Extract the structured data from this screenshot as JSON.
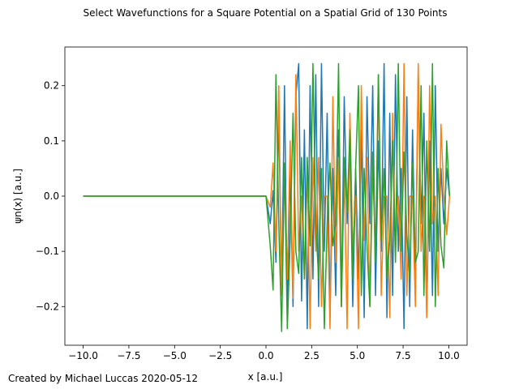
{
  "chart_data": {
    "type": "line",
    "title": "Select Wavefunctions for a Square Potential on a Spatial Grid of 130 Points",
    "xlabel": "x [a.u.]",
    "ylabel": "ψn(x)  [a.u.]",
    "footer": "Created by Michael Luccas 2020-05-12",
    "xlim": [
      -11.0,
      11.0
    ],
    "ylim": [
      -0.27,
      0.27
    ],
    "xticks": [
      -10.0,
      -7.5,
      -5.0,
      -2.5,
      0.0,
      2.5,
      5.0,
      7.5,
      10.0
    ],
    "xtick_labels": [
      "−10.0",
      "−7.5",
      "−5.0",
      "−2.5",
      "0.0",
      "2.5",
      "5.0",
      "7.5",
      "10.0"
    ],
    "yticks": [
      -0.2,
      -0.1,
      0.0,
      0.1,
      0.2
    ],
    "ytick_labels": [
      "−0.2",
      "−0.1",
      "0.0",
      "0.1",
      "0.2"
    ],
    "grid": false,
    "legend": "none",
    "colors": [
      "#1f77b4",
      "#ff7f0e",
      "#2ca02c"
    ],
    "x": [
      -10.0,
      0.0,
      0.233,
      0.389,
      0.545,
      0.7,
      0.856,
      1.012,
      1.167,
      1.323,
      1.479,
      1.634,
      1.79,
      1.946,
      2.101,
      2.257,
      2.412,
      2.568,
      2.724,
      2.879,
      3.035,
      3.191,
      3.346,
      3.502,
      3.658,
      3.813,
      3.969,
      4.125,
      4.28,
      4.436,
      4.591,
      4.747,
      4.903,
      5.058,
      5.214,
      5.37,
      5.525,
      5.681,
      5.837,
      5.992,
      6.148,
      6.304,
      6.459,
      6.615,
      6.77,
      6.926,
      7.082,
      7.237,
      7.393,
      7.549,
      7.704,
      7.86,
      8.016,
      8.171,
      8.327,
      8.483,
      8.638,
      8.794,
      8.949,
      9.105,
      9.261,
      9.416,
      9.572,
      9.728,
      9.883,
      10.039
    ],
    "series": [
      {
        "values": [
          0,
          0,
          -0.05,
          0.01,
          -0.12,
          0.15,
          -0.18,
          0.2,
          -0.22,
          0.05,
          -0.2,
          0.18,
          0.24,
          -0.19,
          0.12,
          -0.24,
          0.2,
          -0.15,
          0.22,
          -0.2,
          0.24,
          -0.1,
          0.15,
          -0.22,
          0.05,
          -0.18,
          0.12,
          -0.2,
          0.18,
          -0.05,
          0.1,
          -0.2,
          0.05,
          -0.15,
          0.12,
          -0.22,
          0.18,
          -0.05,
          0.2,
          -0.18,
          0.1,
          -0.1,
          0.24,
          -0.22,
          0.15,
          -0.18,
          0.22,
          -0.1,
          0.05,
          -0.24,
          0.18,
          -0.2,
          0.12,
          -0.15,
          0.22,
          -0.05,
          0.15,
          -0.22,
          0.1,
          -0.18,
          0.2,
          -0.1,
          0.05,
          -0.05,
          0.05,
          0.0
        ]
      },
      {
        "values": [
          0,
          0,
          -0.02,
          0.06,
          -0.1,
          0.2,
          -0.18,
          0.05,
          -0.15,
          0.1,
          -0.185,
          0.22,
          -0.1,
          0.0,
          -0.15,
          0.05,
          -0.24,
          0.07,
          -0.1,
          0.07,
          -0.2,
          0.0,
          0.0,
          -0.24,
          0.18,
          -0.12,
          0.07,
          -0.2,
          0.05,
          -0.24,
          0.15,
          -0.1,
          0.0,
          -0.24,
          0.2,
          -0.08,
          0.07,
          -0.2,
          0.05,
          -0.1,
          0.22,
          -0.18,
          0.0,
          0.0,
          -0.22,
          0.15,
          -0.1,
          0.0,
          -0.15,
          0.24,
          -0.18,
          0.0,
          0.0,
          -0.2,
          0.24,
          -0.1,
          0.0,
          -0.22,
          0.2,
          -0.05,
          0.0,
          -0.18,
          0.13,
          0.0,
          -0.07,
          0.0
        ]
      },
      {
        "values": [
          0,
          0,
          -0.09,
          -0.17,
          0.22,
          -0.05,
          -0.245,
          0.06,
          -0.24,
          -0.08,
          0.15,
          -0.1,
          -0.14,
          0.07,
          -0.15,
          0.07,
          -0.09,
          0.24,
          -0.05,
          -0.15,
          0.05,
          -0.24,
          -0.05,
          0.06,
          -0.09,
          -0.05,
          0.24,
          -0.2,
          0.07,
          -0.03,
          0.12,
          -0.15,
          0.05,
          0.2,
          -0.18,
          0.05,
          -0.09,
          -0.2,
          0.08,
          -0.12,
          0.22,
          -0.08,
          0.05,
          -0.15,
          -0.08,
          0.1,
          -0.12,
          0.24,
          -0.1,
          0.08,
          -0.07,
          -0.15,
          0.06,
          -0.12,
          -0.1,
          0.2,
          -0.18,
          0.1,
          -0.1,
          0.24,
          -0.2,
          0.05,
          -0.09,
          -0.13,
          0.1,
          0.0
        ]
      }
    ]
  }
}
